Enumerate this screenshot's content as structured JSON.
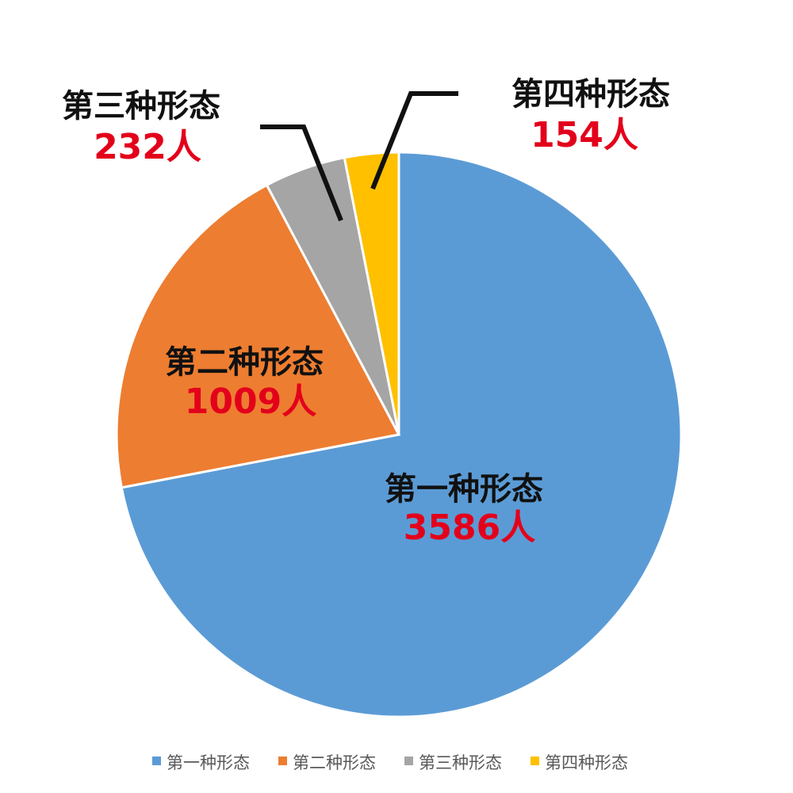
{
  "chart_data": {
    "type": "pie",
    "title": "",
    "legend_position": "bottom",
    "slices": [
      {
        "name": "第一种形态",
        "value": 3586,
        "value_label": "3586人",
        "color": "#5b9bd5"
      },
      {
        "name": "第二种形态",
        "value": 1009,
        "value_label": "1009人",
        "color": "#ed7d31"
      },
      {
        "name": "第三种形态",
        "value": 232,
        "value_label": "232人",
        "color": "#a5a5a5"
      },
      {
        "name": "第四种形态",
        "value": 154,
        "value_label": "154人",
        "color": "#ffc000"
      }
    ]
  }
}
